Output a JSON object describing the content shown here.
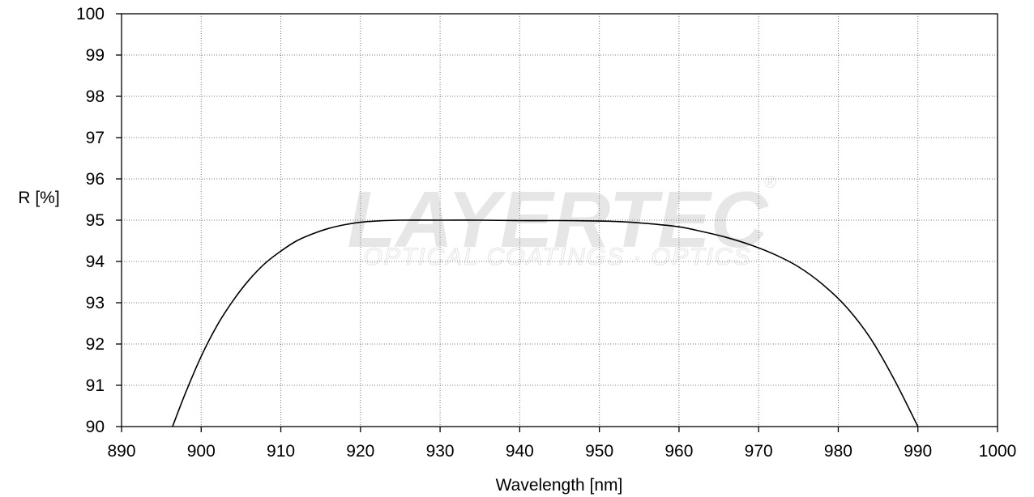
{
  "chart_data": {
    "type": "line",
    "xlabel": "Wavelength [nm]",
    "ylabel": "R [%]",
    "xlim": [
      890,
      1000
    ],
    "ylim": [
      90,
      100
    ],
    "xticks": [
      890,
      900,
      910,
      920,
      930,
      940,
      950,
      960,
      970,
      980,
      990,
      1000
    ],
    "yticks": [
      90,
      91,
      92,
      93,
      94,
      95,
      96,
      97,
      98,
      99,
      100
    ],
    "grid": true,
    "series": [
      {
        "x": [
          896.4,
          898,
          900,
          902,
          904,
          906,
          908,
          910,
          912,
          914,
          916,
          918,
          920,
          922,
          925,
          930,
          935,
          940,
          945,
          950,
          953,
          956,
          960,
          963,
          966,
          969,
          972,
          975,
          978,
          981,
          984,
          987,
          990
        ],
        "y": [
          90.0,
          90.8,
          91.7,
          92.45,
          93.05,
          93.55,
          93.95,
          94.25,
          94.5,
          94.67,
          94.8,
          94.89,
          94.95,
          94.98,
          95.0,
          95.0,
          95.0,
          94.99,
          94.99,
          94.98,
          94.96,
          94.92,
          94.84,
          94.72,
          94.58,
          94.4,
          94.17,
          93.87,
          93.45,
          92.9,
          92.15,
          91.15,
          90.0
        ],
        "color": "#000000"
      }
    ],
    "watermark": {
      "main": "LAYERTEC",
      "sub": "OPTICAL COATINGS · OPTICS",
      "reg": "®"
    }
  }
}
